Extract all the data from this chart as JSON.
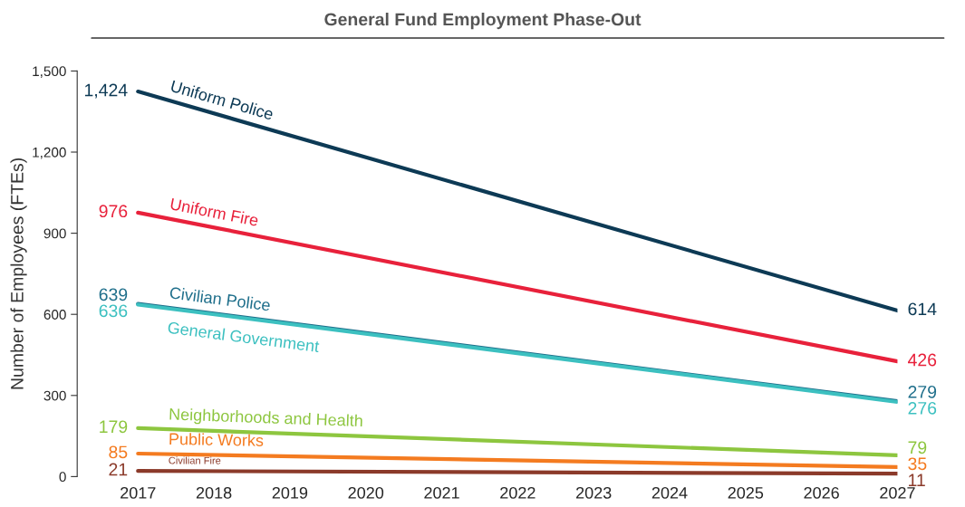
{
  "chart_data": {
    "type": "line",
    "title": "General Fund Employment Phase-Out",
    "ylabel": "Number of Employees (FTEs)",
    "x": [
      2017,
      2027
    ],
    "series": [
      {
        "name": "Uniform Police",
        "color": "#0d3a55",
        "values": [
          1424,
          614
        ],
        "value_labels": [
          "1,424",
          "614"
        ]
      },
      {
        "name": "Uniform Fire",
        "color": "#e8213b",
        "values": [
          976,
          426
        ],
        "value_labels": [
          "976",
          "426"
        ]
      },
      {
        "name": "Civilian Police",
        "color": "#1f6f8b",
        "values": [
          639,
          279
        ],
        "value_labels": [
          "639",
          "279"
        ]
      },
      {
        "name": "General Government",
        "color": "#3cc0c0",
        "values": [
          636,
          276
        ],
        "value_labels": [
          "636",
          "276"
        ]
      },
      {
        "name": "Neighborhoods and Health",
        "color": "#8dc63f",
        "values": [
          179,
          79
        ],
        "value_labels": [
          "179",
          "79"
        ]
      },
      {
        "name": "Public Works",
        "color": "#f47b20",
        "values": [
          85,
          35
        ],
        "value_labels": [
          "85",
          "35"
        ]
      },
      {
        "name": "Civilian Fire",
        "color": "#8b3a2a",
        "values": [
          21,
          11
        ],
        "value_labels": [
          "21",
          "11"
        ]
      }
    ],
    "xlim": [
      2016.2,
      2027
    ],
    "xticks": [
      2017,
      2018,
      2019,
      2020,
      2021,
      2022,
      2023,
      2024,
      2025,
      2026,
      2027
    ],
    "ylim": [
      0,
      1500
    ],
    "yticks": [
      0,
      300,
      600,
      900,
      {
        "value": 1200,
        "label": "1,200"
      },
      {
        "value": 1500,
        "label": "1,500"
      }
    ],
    "grid": false,
    "marker": "none",
    "line_style": "solid"
  }
}
